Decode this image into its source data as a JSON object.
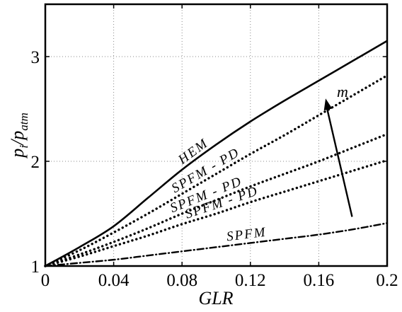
{
  "chart_data": {
    "type": "line",
    "xlabel": "GLR",
    "ylabel": "p_i/p_atm",
    "xlim": [
      0,
      0.2
    ],
    "ylim": [
      1,
      3.5
    ],
    "xticks": [
      "0",
      "0.04",
      "0.08",
      "0.12",
      "0.16",
      "0.2"
    ],
    "yticks": [
      "1",
      "2",
      "3"
    ],
    "grid": true,
    "series": [
      {
        "name": "HEM",
        "style": "solid",
        "x": [
          0,
          0.02,
          0.04,
          0.06,
          0.08,
          0.1,
          0.12,
          0.14,
          0.16,
          0.18,
          0.2
        ],
        "y": [
          1.0,
          1.18,
          1.38,
          1.65,
          1.92,
          2.16,
          2.38,
          2.58,
          2.77,
          2.96,
          3.15
        ]
      },
      {
        "name": "SPFM - PD",
        "style": "dotted",
        "x": [
          0,
          0.02,
          0.04,
          0.06,
          0.08,
          0.1,
          0.12,
          0.14,
          0.16,
          0.18,
          0.2
        ],
        "y": [
          1.0,
          1.15,
          1.32,
          1.5,
          1.69,
          1.88,
          2.07,
          2.25,
          2.44,
          2.63,
          2.82
        ]
      },
      {
        "name": "SPFM - PD",
        "style": "dotted",
        "x": [
          0,
          0.02,
          0.04,
          0.06,
          0.08,
          0.1,
          0.12,
          0.14,
          0.16,
          0.18,
          0.2
        ],
        "y": [
          1.0,
          1.11,
          1.23,
          1.36,
          1.5,
          1.63,
          1.76,
          1.88,
          2.0,
          2.13,
          2.26
        ]
      },
      {
        "name": "SPFM - PD",
        "style": "dotted",
        "x": [
          0,
          0.02,
          0.04,
          0.06,
          0.08,
          0.1,
          0.12,
          0.14,
          0.16,
          0.18,
          0.2
        ],
        "y": [
          1.0,
          1.09,
          1.19,
          1.29,
          1.4,
          1.5,
          1.61,
          1.71,
          1.81,
          1.91,
          2.01
        ]
      },
      {
        "name": "SPFM",
        "style": "dashdot",
        "x": [
          0,
          0.02,
          0.04,
          0.06,
          0.08,
          0.1,
          0.12,
          0.14,
          0.16,
          0.18,
          0.2
        ],
        "y": [
          1.0,
          1.03,
          1.06,
          1.1,
          1.14,
          1.18,
          1.22,
          1.26,
          1.3,
          1.35,
          1.41
        ]
      }
    ],
    "annotations": {
      "arrow_label": "m"
    }
  },
  "tick_labels": {
    "y_tick_1": "1",
    "y_tick_2": "2",
    "y_tick_3": "3"
  }
}
